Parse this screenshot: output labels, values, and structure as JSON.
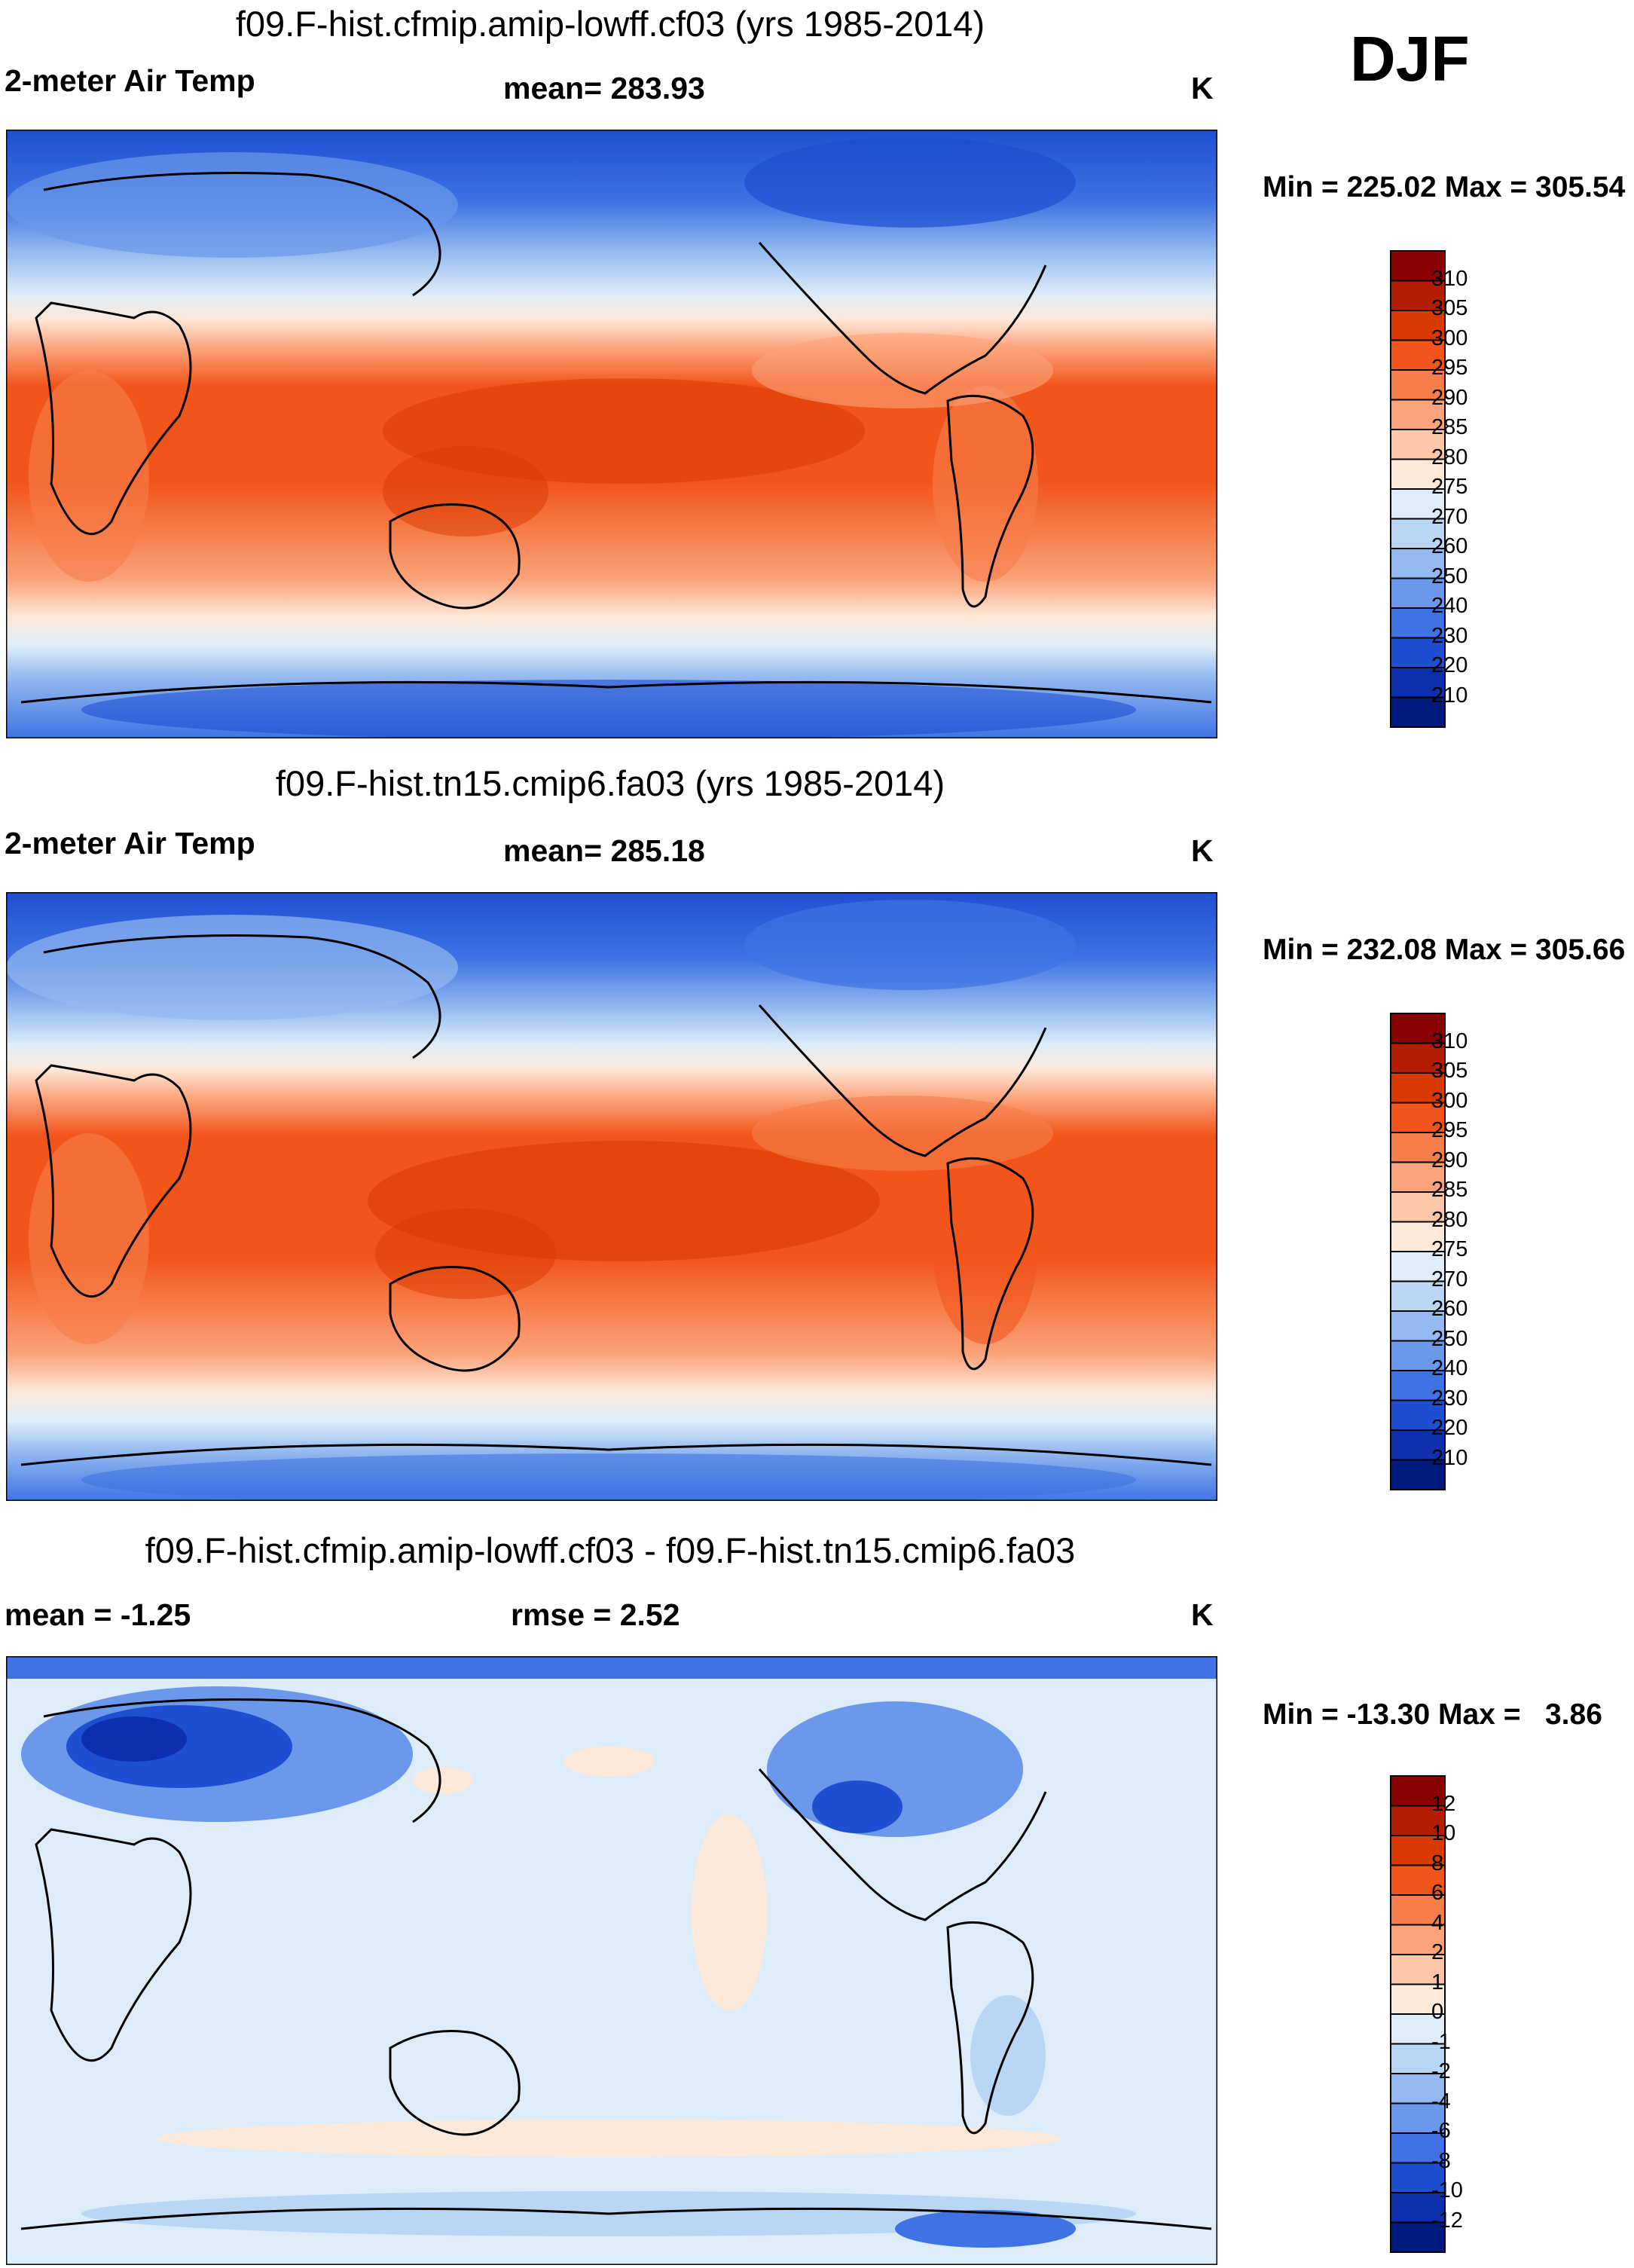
{
  "season": "DJF",
  "chart_data": [
    {
      "type": "heatmap",
      "title": "f09.F-hist.cfmip.amip-lowff.cf03 (yrs 1985-2014)",
      "variable": "2-meter Air Temp",
      "mean_label": "mean= 283.93",
      "units": "K",
      "minmax_label": "Min = 225.02 Max = 305.54",
      "min": 225.02,
      "max": 305.54,
      "mean": 283.93,
      "levels": [
        210,
        220,
        230,
        240,
        250,
        260,
        270,
        275,
        280,
        285,
        290,
        295,
        300,
        305,
        310
      ],
      "level_labels": [
        "310",
        "305",
        "300",
        "295",
        "290",
        "285",
        "280",
        "275",
        "270",
        "260",
        "250",
        "240",
        "230",
        "220",
        "210"
      ],
      "colors": [
        "#8b0000",
        "#b31d00",
        "#d93a00",
        "#f2551c",
        "#f77d4a",
        "#fba37a",
        "#fdc7a8",
        "#fde9da",
        "#dcecf8",
        "#b9d6f5",
        "#93b9f0",
        "#6b98ea",
        "#3f73e3",
        "#1e4fd3",
        "#0d2fb0",
        "#001a80"
      ]
    },
    {
      "type": "heatmap",
      "title": "f09.F-hist.tn15.cmip6.fa03 (yrs 1985-2014)",
      "variable": "2-meter Air Temp",
      "mean_label": "mean= 285.18",
      "units": "K",
      "minmax_label": "Min = 232.08 Max = 305.66",
      "min": 232.08,
      "max": 305.66,
      "mean": 285.18,
      "levels": [
        210,
        220,
        230,
        240,
        250,
        260,
        270,
        275,
        280,
        285,
        290,
        295,
        300,
        305,
        310
      ],
      "level_labels": [
        "310",
        "305",
        "300",
        "295",
        "290",
        "285",
        "280",
        "275",
        "270",
        "260",
        "250",
        "240",
        "230",
        "220",
        "210"
      ],
      "colors": [
        "#8b0000",
        "#b31d00",
        "#d93a00",
        "#f2551c",
        "#f77d4a",
        "#fba37a",
        "#fdc7a8",
        "#fde9da",
        "#dcecf8",
        "#b9d6f5",
        "#93b9f0",
        "#6b98ea",
        "#3f73e3",
        "#1e4fd3",
        "#0d2fb0",
        "#001a80"
      ]
    },
    {
      "type": "heatmap",
      "title": "f09.F-hist.cfmip.amip-lowff.cf03 - f09.F-hist.tn15.cmip6.fa03",
      "mean_label": "mean =  -1.25",
      "rmse_label": "rmse =   2.52",
      "units": "K",
      "minmax_label": "Min = -13.30 Max =   3.86",
      "min": -13.3,
      "max": 3.86,
      "mean": -1.25,
      "rmse": 2.52,
      "levels": [
        -12,
        -10,
        -8,
        -6,
        -4,
        -2,
        -1,
        0,
        1,
        2,
        4,
        6,
        8,
        10,
        12
      ],
      "level_labels": [
        "12",
        "10",
        "8",
        "6",
        "4",
        "2",
        "1",
        "0",
        "-1",
        "-2",
        "-4",
        "-6",
        "-8",
        "-10",
        "-12"
      ],
      "colors": [
        "#8b0000",
        "#b31d00",
        "#d93a00",
        "#f2551c",
        "#f77d4a",
        "#fba37a",
        "#fdc7a8",
        "#fde9da",
        "#dcecf8",
        "#b9d6f5",
        "#93b9f0",
        "#6b98ea",
        "#3f73e3",
        "#1e4fd3",
        "#0d2fb0",
        "#001a80"
      ]
    }
  ]
}
